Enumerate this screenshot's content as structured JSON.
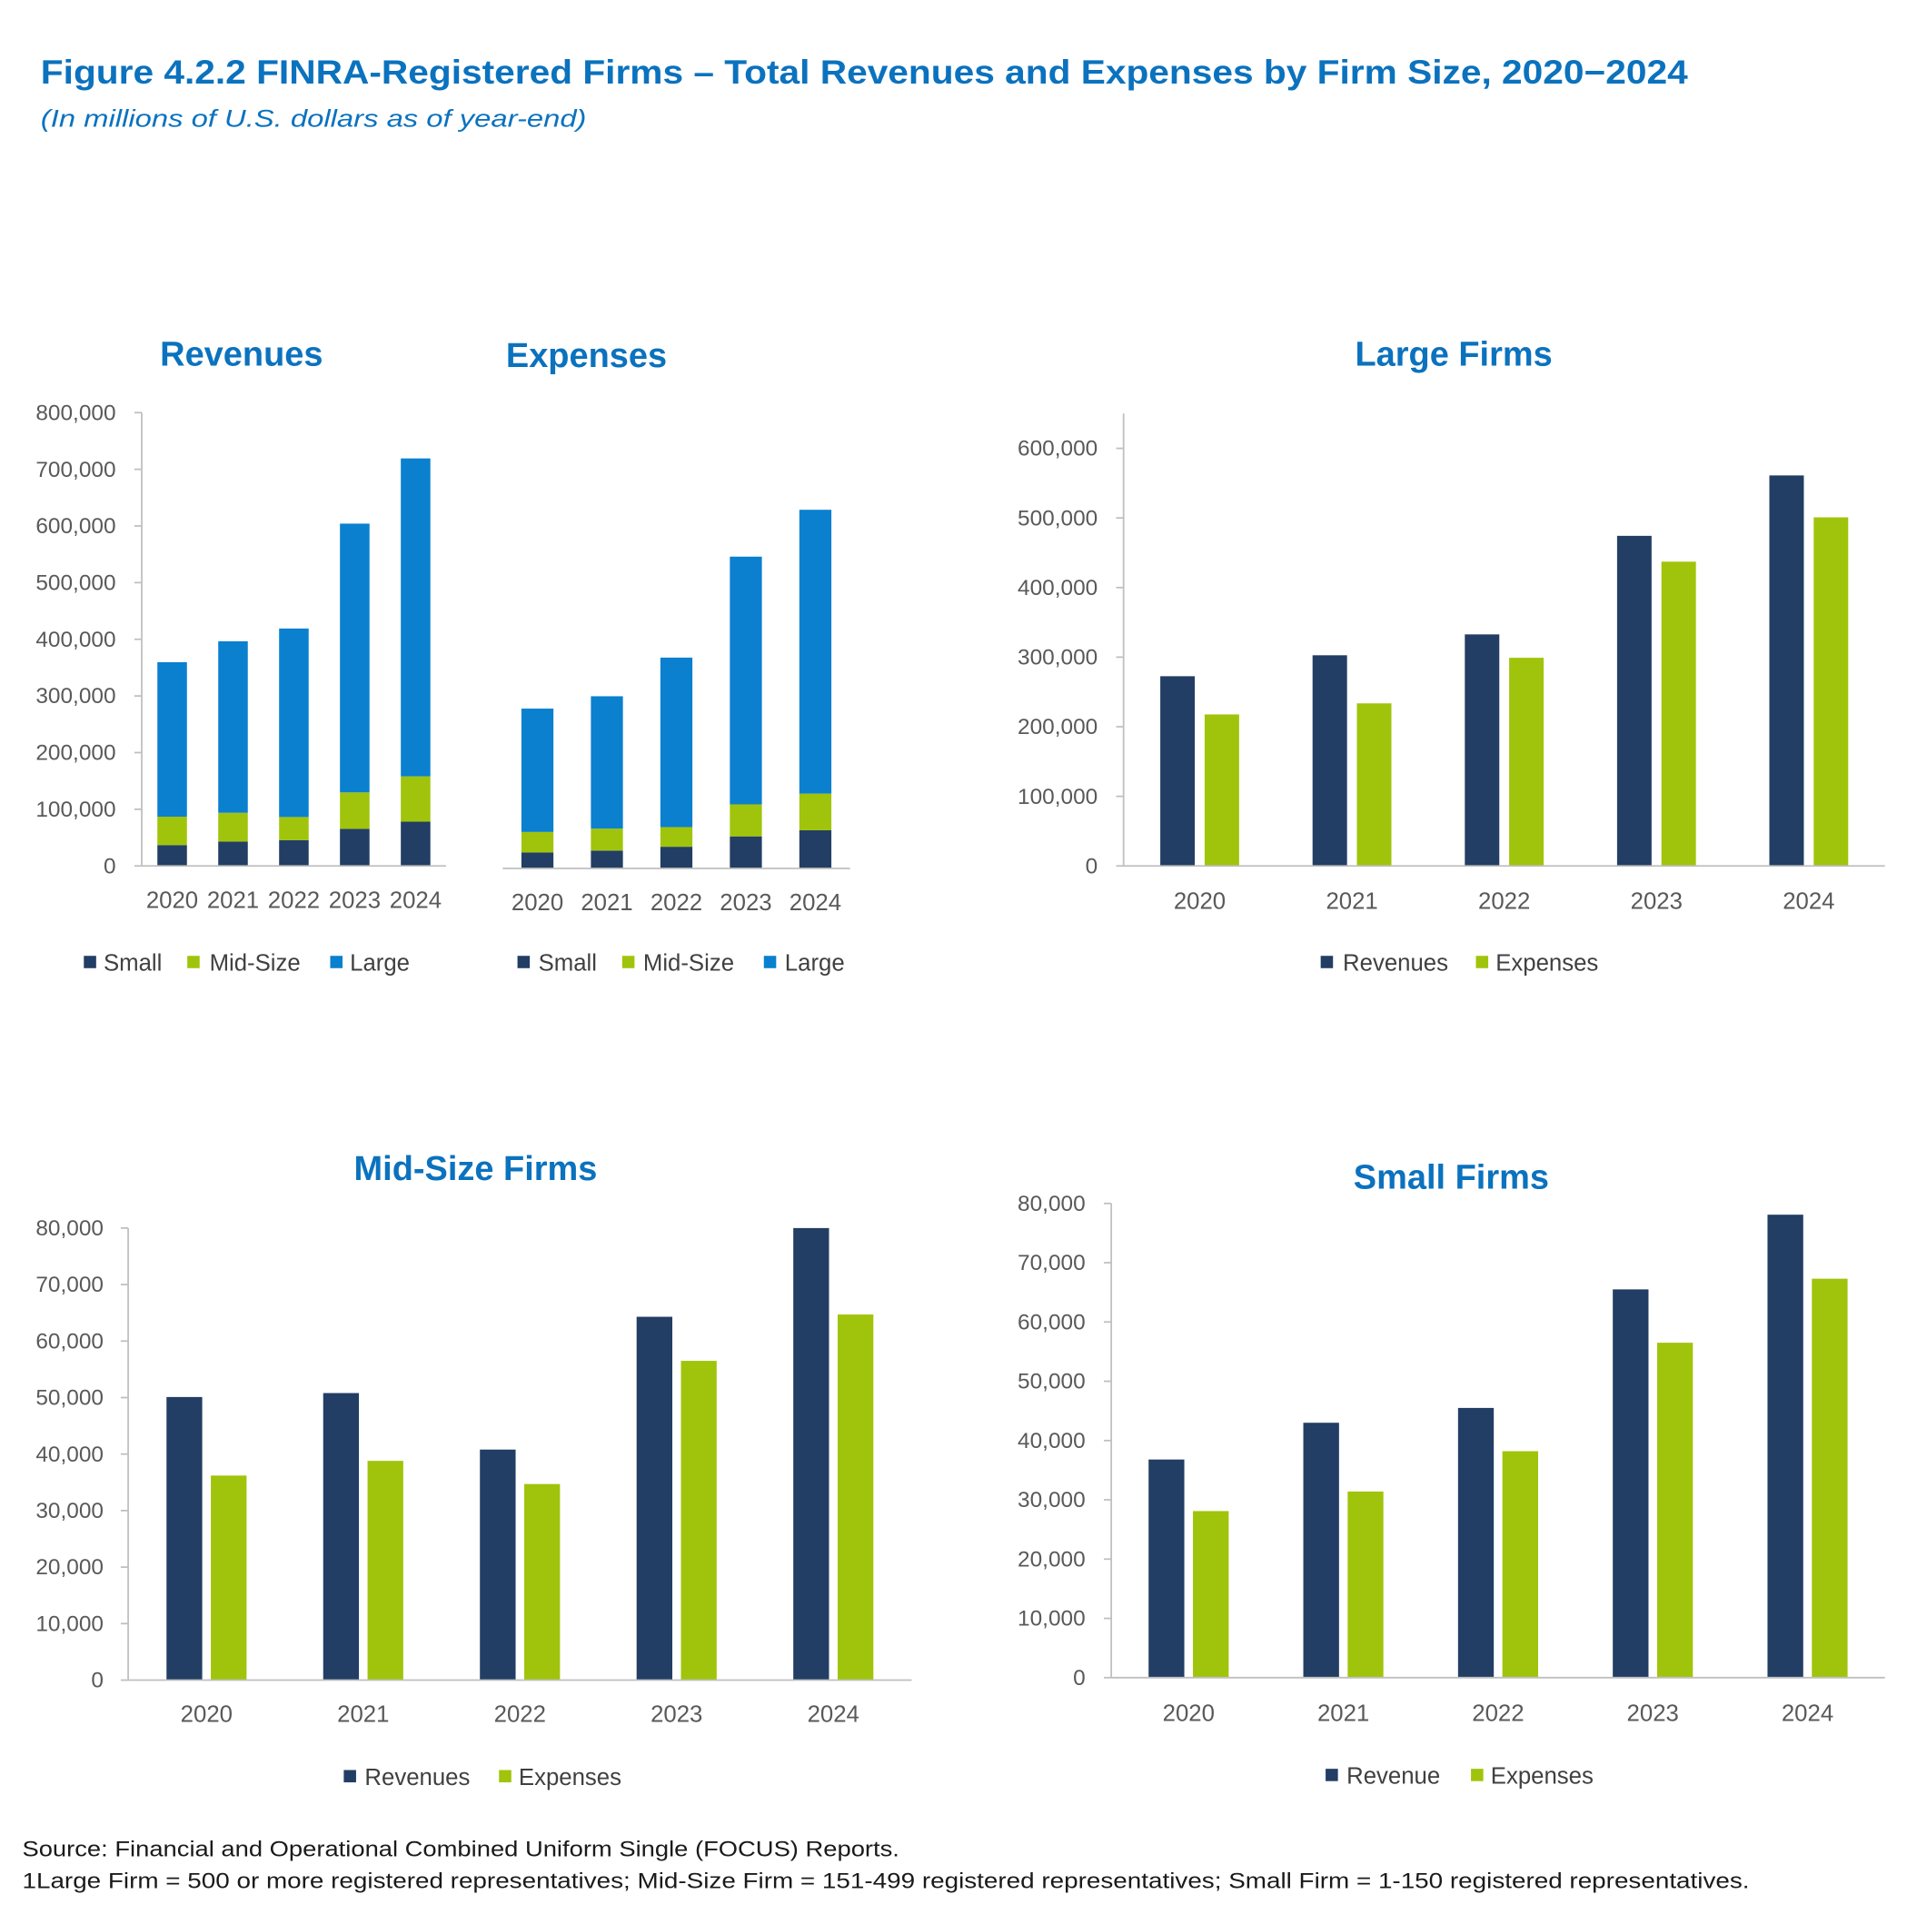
{
  "figure": {
    "title": "Figure 4.2.2 FINRA-Registered Firms – Total Revenues and Expenses by Firm Size, 2020−2024",
    "subtitle": "(In millions of U.S. dollars as of year-end)"
  },
  "colors": {
    "title": "#0B72BE",
    "axis": "#BFBFBF",
    "small": "#233E64",
    "mid_size": "#A0C40B",
    "large": "#0A80CF",
    "revenues": "#233E64",
    "expenses": "#A0C40B"
  },
  "footnotes": {
    "source": "Source: Financial and Operational Combined Uniform Single (FOCUS) Reports.",
    "definitions": "1Large Firm = 500 or more registered representatives; Mid-Size Firm = 151-499 registered representatives; Small Firm = 1-150 registered representatives."
  },
  "chart_data": [
    {
      "type": "bar",
      "stacked": true,
      "title": "Revenues",
      "categories": [
        "2020",
        "2021",
        "2022",
        "2023",
        "2024"
      ],
      "series": [
        {
          "name": "Small",
          "color": "#233E64",
          "values": [
            36800,
            43000,
            45500,
            65500,
            78100
          ]
        },
        {
          "name": "Mid-Size",
          "color": "#A0C40B",
          "values": [
            50100,
            50800,
            40800,
            64300,
            80000
          ]
        },
        {
          "name": "Large",
          "color": "#0A80CF",
          "values": [
            272600,
            302700,
            332700,
            474300,
            561100
          ]
        }
      ],
      "ylim": [
        0,
        800000
      ],
      "ytick_labels": [
        "0",
        "100,000",
        "200,000",
        "300,000",
        "400,000",
        "500,000",
        "600,000",
        "700,000",
        "800,000"
      ],
      "legend": "bottom"
    },
    {
      "type": "bar",
      "stacked": true,
      "title": "Expenses",
      "categories": [
        "2020",
        "2021",
        "2022",
        "2023",
        "2024"
      ],
      "series": [
        {
          "name": "Small",
          "color": "#233E64",
          "values": [
            28100,
            31400,
            38200,
            56500,
            67300
          ]
        },
        {
          "name": "Mid-Size",
          "color": "#A0C40B",
          "values": [
            36200,
            38800,
            34700,
            56500,
            64700
          ]
        },
        {
          "name": "Large",
          "color": "#0A80CF",
          "values": [
            217700,
            233600,
            299100,
            437200,
            500900
          ]
        }
      ],
      "ylim": [
        0,
        800000
      ],
      "ytick_labels": [],
      "legend": "bottom"
    },
    {
      "type": "bar",
      "stacked": false,
      "title": "Large Firms",
      "categories": [
        "2020",
        "2021",
        "2022",
        "2023",
        "2024"
      ],
      "series": [
        {
          "name": "Revenues",
          "color": "#233E64",
          "values": [
            272600,
            302700,
            332700,
            474300,
            561100
          ]
        },
        {
          "name": "Expenses",
          "color": "#A0C40B",
          "values": [
            217700,
            233600,
            299100,
            437200,
            500900
          ]
        }
      ],
      "ylim": [
        0,
        650000
      ],
      "ytick_labels": [
        "0",
        "100,000",
        "200,000",
        "300,000",
        "400,000",
        "500,000",
        "600,000"
      ],
      "legend": "bottom"
    },
    {
      "type": "bar",
      "stacked": false,
      "title": "Mid-Size Firms",
      "categories": [
        "2020",
        "2021",
        "2022",
        "2023",
        "2024"
      ],
      "series": [
        {
          "name": "Revenues",
          "color": "#233E64",
          "values": [
            50100,
            50800,
            40800,
            64300,
            80000
          ]
        },
        {
          "name": "Expenses",
          "color": "#A0C40B",
          "values": [
            36200,
            38800,
            34700,
            56500,
            64700
          ]
        }
      ],
      "ylim": [
        0,
        80000
      ],
      "ytick_labels": [
        "0",
        "10,000",
        "20,000",
        "30,000",
        "40,000",
        "50,000",
        "60,000",
        "70,000",
        "80,000"
      ],
      "legend": "bottom"
    },
    {
      "type": "bar",
      "stacked": false,
      "title": "Small Firms",
      "categories": [
        "2020",
        "2021",
        "2022",
        "2023",
        "2024"
      ],
      "series": [
        {
          "name": "Revenue",
          "color": "#233E64",
          "values": [
            36800,
            43000,
            45500,
            65500,
            78100
          ]
        },
        {
          "name": "Expenses",
          "color": "#A0C40B",
          "values": [
            28100,
            31400,
            38200,
            56500,
            67300
          ]
        }
      ],
      "ylim": [
        0,
        80000
      ],
      "ytick_labels": [
        "0",
        "10,000",
        "20,000",
        "30,000",
        "40,000",
        "50,000",
        "60,000",
        "70,000",
        "80,000"
      ],
      "legend": "bottom"
    }
  ]
}
